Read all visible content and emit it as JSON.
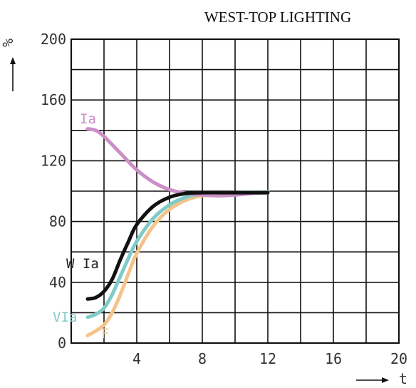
{
  "chart_data": {
    "type": "line",
    "title": "WEST-TOP LIGHTING",
    "xlabel": "t",
    "ylabel": "%",
    "xlim": [
      0,
      20
    ],
    "ylim": [
      0,
      200
    ],
    "grid": true,
    "x_ticks": [
      "4",
      "8",
      "12",
      "16",
      "20"
    ],
    "y_ticks": [
      "0",
      "40",
      "80",
      "120",
      "160",
      "200"
    ],
    "series": [
      {
        "name": "Ia",
        "color": "#c98fc6",
        "points": [
          [
            1,
            141
          ],
          [
            1.5,
            140
          ],
          [
            2,
            136
          ],
          [
            3,
            125
          ],
          [
            4,
            114
          ],
          [
            5,
            106
          ],
          [
            6,
            101
          ],
          [
            7,
            98.5
          ],
          [
            8,
            97.5
          ],
          [
            9,
            97
          ],
          [
            10,
            97.5
          ],
          [
            11,
            98.5
          ],
          [
            12,
            99
          ]
        ]
      },
      {
        "name": "W Ia",
        "color": "#111111",
        "points": [
          [
            1,
            29
          ],
          [
            1.5,
            30
          ],
          [
            2,
            34
          ],
          [
            2.5,
            42
          ],
          [
            3,
            55
          ],
          [
            3.5,
            67
          ],
          [
            4,
            78
          ],
          [
            5,
            90
          ],
          [
            6,
            96
          ],
          [
            7,
            98.5
          ],
          [
            8,
            99
          ],
          [
            10,
            99
          ],
          [
            12,
            99
          ]
        ]
      },
      {
        "name": "VIa",
        "color": "#7fcbc8",
        "points": [
          [
            1,
            17
          ],
          [
            1.5,
            19
          ],
          [
            2,
            23
          ],
          [
            2.5,
            32
          ],
          [
            3,
            44
          ],
          [
            3.5,
            56
          ],
          [
            4,
            67
          ],
          [
            5,
            82
          ],
          [
            6,
            91
          ],
          [
            7,
            96
          ],
          [
            8,
            98
          ],
          [
            10,
            99
          ],
          [
            12,
            99.5
          ]
        ]
      },
      {
        "name": "F",
        "color": "#f5c38a",
        "points": [
          [
            1,
            5
          ],
          [
            1.5,
            8
          ],
          [
            2,
            12
          ],
          [
            2.5,
            20
          ],
          [
            3,
            32
          ],
          [
            3.5,
            46
          ],
          [
            4,
            59
          ],
          [
            5,
            77
          ],
          [
            6,
            88
          ],
          [
            7,
            94
          ],
          [
            8,
            97
          ],
          [
            10,
            99
          ],
          [
            12,
            99.5
          ]
        ]
      }
    ]
  }
}
